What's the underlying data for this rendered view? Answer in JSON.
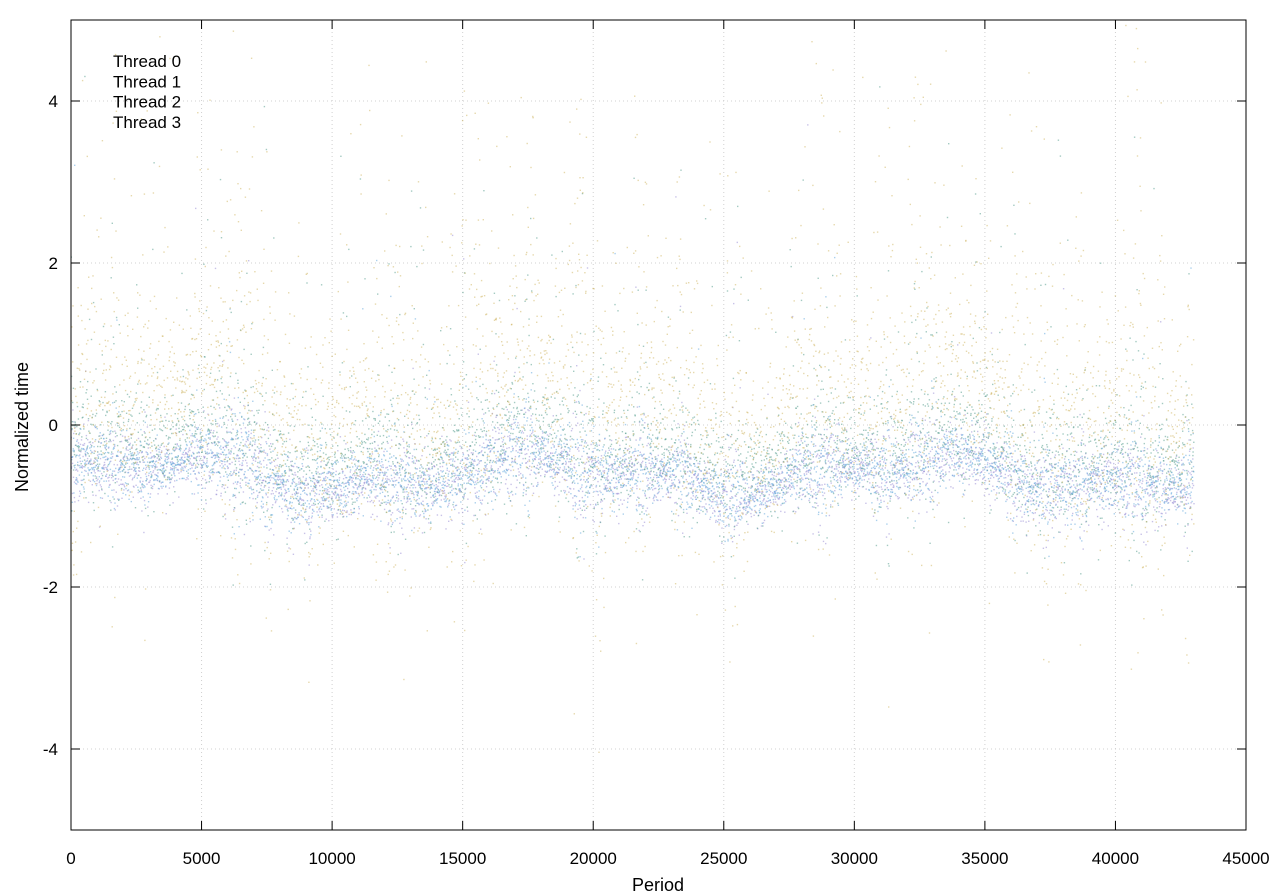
{
  "chart_data": {
    "type": "scatter",
    "title": "",
    "xlabel": "Period",
    "ylabel": "Normalized time",
    "xlim": [
      0,
      45000
    ],
    "ylim": [
      -5,
      5
    ],
    "xticks": [
      0,
      5000,
      10000,
      15000,
      20000,
      25000,
      30000,
      35000,
      40000,
      45000
    ],
    "yticks": [
      -4,
      -2,
      0,
      2,
      4
    ],
    "grid": true,
    "legend_position": "top-left",
    "n_periods": 43000,
    "series": [
      {
        "name": "Thread 0",
        "color": "#9b8fd6",
        "baseline": -0.62,
        "spread": 0.22,
        "spike_prob": 0.01
      },
      {
        "name": "Thread 1",
        "color": "#5a9e8f",
        "baseline": -0.35,
        "spread": 0.35,
        "spike_prob": 0.05
      },
      {
        "name": "Thread 2",
        "color": "#c8a84a",
        "baseline": 0.15,
        "spread": 0.6,
        "spike_prob": 0.09
      },
      {
        "name": "Thread 3",
        "color": "#66aadd",
        "baseline": -0.6,
        "spread": 0.2,
        "spike_prob": 0.012
      }
    ]
  }
}
